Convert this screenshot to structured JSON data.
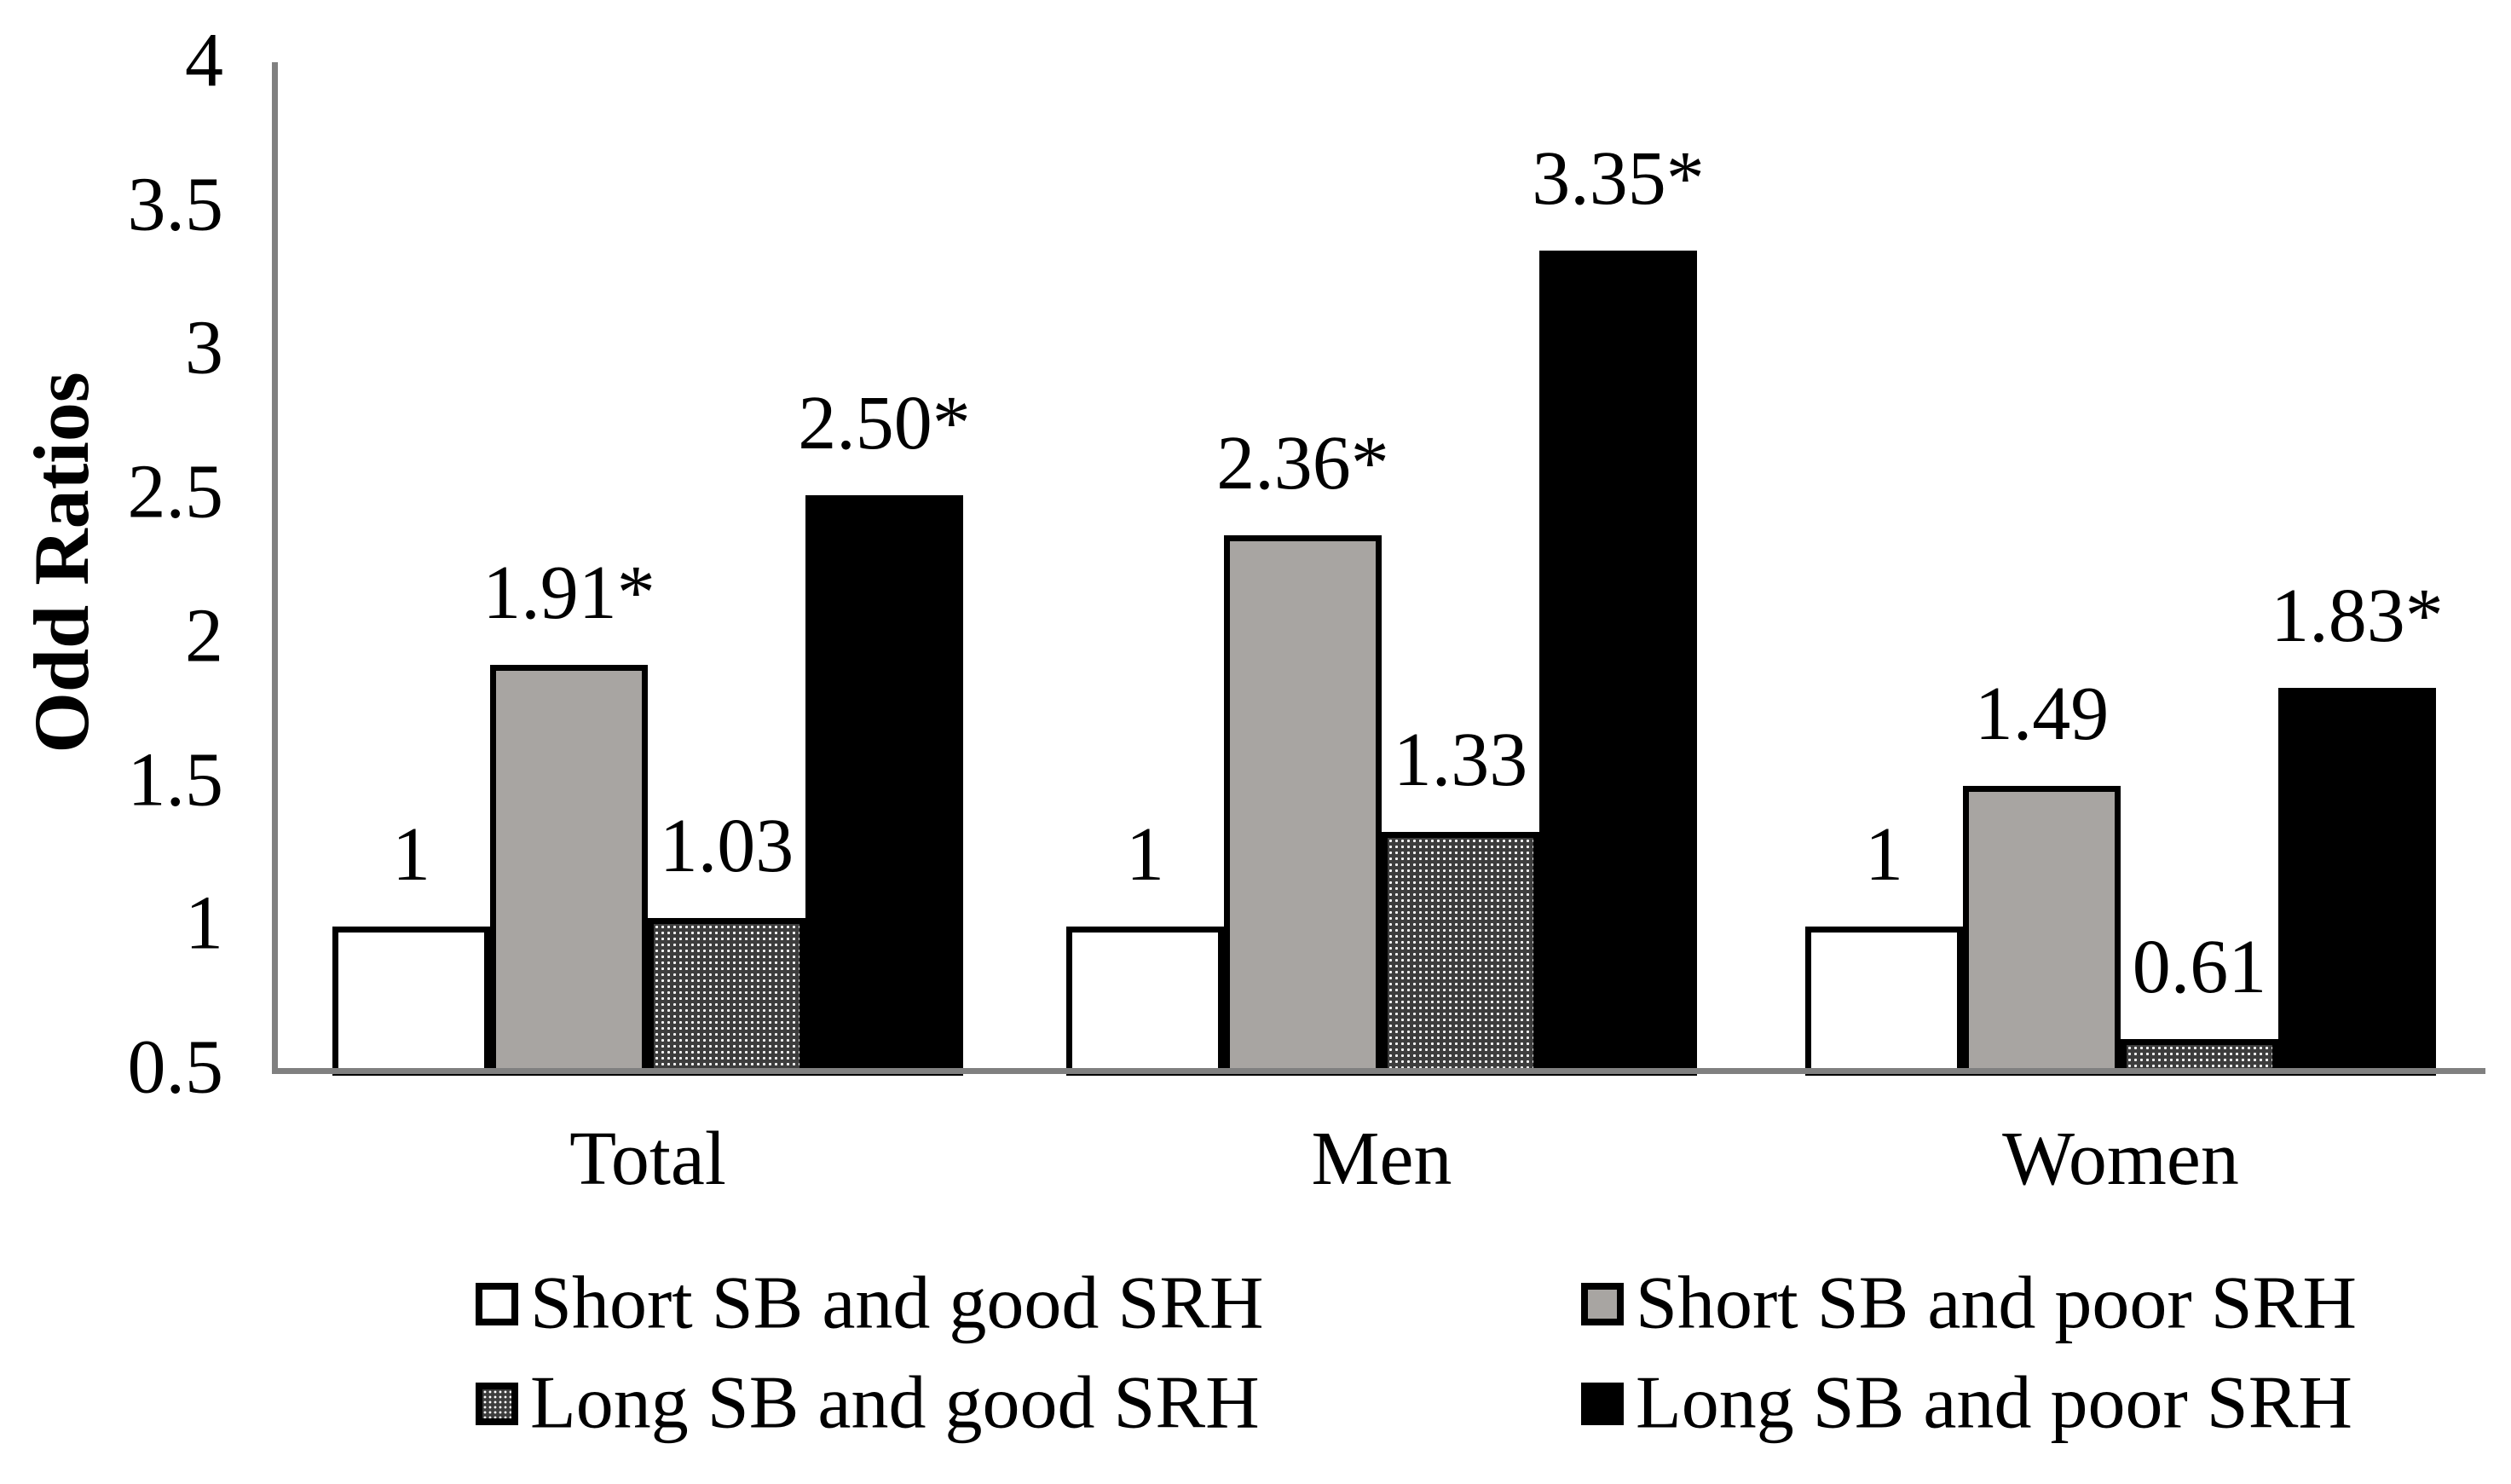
{
  "chart_data": {
    "type": "bar",
    "title": "",
    "ylabel": "Odd Ratios",
    "xlabel": "",
    "ylim": [
      0.5,
      4
    ],
    "ytick_step": 0.5,
    "ytick_labels": [
      "4",
      "3.5",
      "3",
      "2.5",
      "2",
      "1.5",
      "1",
      "0.5"
    ],
    "grid": false,
    "legend_position": "bottom",
    "categories": [
      "Total",
      "Men",
      "Women"
    ],
    "series": [
      {
        "name": "Short SB and good SRH",
        "style": "white",
        "values": [
          1,
          1,
          1
        ],
        "labels": [
          "1",
          "1",
          "1"
        ]
      },
      {
        "name": "Short SB and poor SRH",
        "style": "gray",
        "values": [
          1.91,
          2.36,
          1.49
        ],
        "labels": [
          "1.91*",
          "2.36*",
          "1.49"
        ]
      },
      {
        "name": "Long SB and good SRH",
        "style": "dotted",
        "values": [
          1.03,
          1.33,
          0.61
        ],
        "labels": [
          "1.03",
          "1.33",
          "0.61"
        ]
      },
      {
        "name": "Long SB and poor SRH",
        "style": "black",
        "values": [
          2.5,
          3.35,
          1.83
        ],
        "labels": [
          "2.50*",
          "3.35*",
          "1.83*"
        ]
      }
    ],
    "significance_marker": "*"
  },
  "colors": {
    "axis": "#808080",
    "bar_white": "#ffffff",
    "bar_gray": "#a8a5a2",
    "bar_dotted_base": "#3d3d3d",
    "bar_black": "#000000",
    "text": "#000000"
  }
}
